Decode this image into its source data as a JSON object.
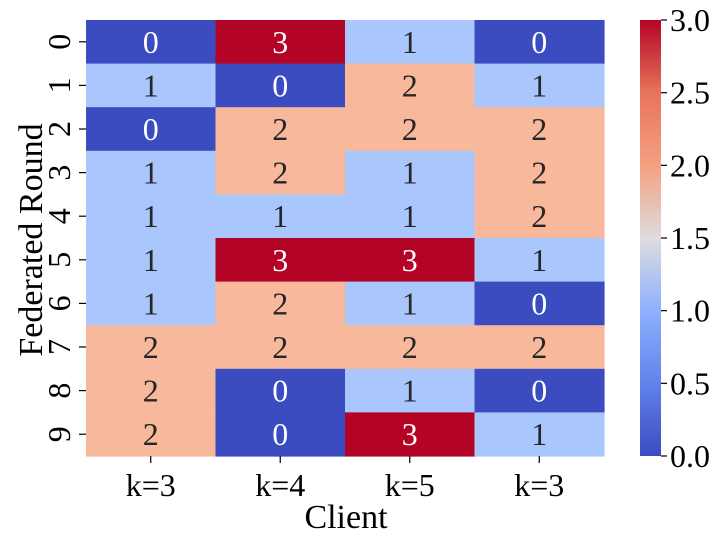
{
  "chart_data": {
    "type": "heatmap",
    "title": "",
    "xlabel": "Client",
    "ylabel": "Federated Round",
    "x_categories": [
      "k=3",
      "k=4",
      "k=5",
      "k=3"
    ],
    "y_categories": [
      "0",
      "1",
      "2",
      "3",
      "4",
      "5",
      "6",
      "7",
      "8",
      "9"
    ],
    "values": [
      [
        0,
        3,
        1,
        0
      ],
      [
        1,
        0,
        2,
        1
      ],
      [
        0,
        2,
        2,
        2
      ],
      [
        1,
        2,
        1,
        2
      ],
      [
        1,
        1,
        1,
        2
      ],
      [
        1,
        3,
        3,
        1
      ],
      [
        1,
        2,
        1,
        0
      ],
      [
        2,
        2,
        2,
        2
      ],
      [
        2,
        0,
        1,
        0
      ],
      [
        2,
        0,
        3,
        1
      ]
    ],
    "colorbar": {
      "colormap": "coolwarm",
      "range": [
        0,
        3
      ],
      "ticks": [
        "0.0",
        "0.5",
        "1.0",
        "1.5",
        "2.0",
        "2.5",
        "3.0"
      ]
    },
    "annotations": "cell values shown in each cell",
    "colors": {
      "v0": "#3b4cc0",
      "v1": "#aac7fd",
      "v2": "#f7b89c",
      "v3": "#b40426"
    }
  }
}
